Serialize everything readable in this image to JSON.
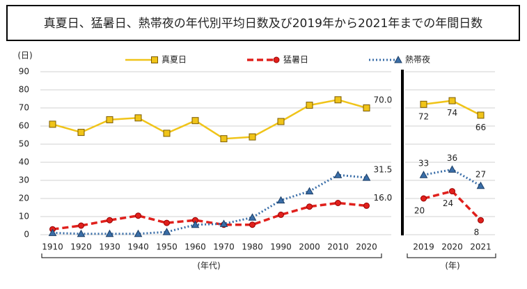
{
  "chart_data": [
    {
      "type": "line",
      "title": "真夏日、猛暑日、熱帯夜の年代別平均日数及び2019年から2021年までの年間日数",
      "y_label": "(日)",
      "x_label": "(年代)",
      "categories": [
        "1910",
        "1920",
        "1930",
        "1940",
        "1950",
        "1960",
        "1970",
        "1980",
        "1990",
        "2000",
        "2010",
        "2020"
      ],
      "ylim": [
        0,
        90
      ],
      "yticks": [
        0,
        10,
        20,
        30,
        40,
        50,
        60,
        70,
        80,
        90
      ],
      "grid": true,
      "series": [
        {
          "name": "真夏日",
          "color": "#f0c419",
          "values": [
            61,
            56.5,
            63.5,
            64.5,
            56,
            63,
            53,
            54,
            62.5,
            71.5,
            74.5,
            70
          ],
          "value_labels": [
            null,
            null,
            null,
            null,
            null,
            null,
            null,
            null,
            null,
            null,
            null,
            "70.0"
          ]
        },
        {
          "name": "猛暑日",
          "color": "#e0201c",
          "values": [
            3,
            5,
            8,
            10.5,
            6.5,
            8,
            5.5,
            5.5,
            11,
            15.5,
            17.5,
            16
          ],
          "value_labels": [
            null,
            null,
            null,
            null,
            null,
            null,
            null,
            null,
            null,
            null,
            null,
            "16.0"
          ]
        },
        {
          "name": "熱帯夜",
          "color": "#3a6ea8",
          "values": [
            1,
            0.5,
            0.5,
            0.5,
            1.5,
            5.5,
            6,
            9.5,
            19,
            24,
            33,
            31.5
          ],
          "value_labels": [
            null,
            null,
            null,
            null,
            null,
            null,
            null,
            null,
            null,
            null,
            null,
            "31.5"
          ]
        }
      ]
    },
    {
      "type": "line",
      "x_label": "(年)",
      "categories": [
        "2019",
        "2020",
        "2021"
      ],
      "ylim": [
        0,
        90
      ],
      "yticks": [
        0,
        10,
        20,
        30,
        40,
        50,
        60,
        70,
        80,
        90
      ],
      "grid": true,
      "series": [
        {
          "name": "真夏日",
          "color": "#f0c419",
          "values": [
            72,
            74,
            66
          ]
        },
        {
          "name": "猛暑日",
          "color": "#e0201c",
          "values": [
            20,
            24,
            8
          ]
        },
        {
          "name": "熱帯夜",
          "color": "#3a6ea8",
          "values": [
            33,
            36,
            27
          ]
        }
      ]
    }
  ]
}
